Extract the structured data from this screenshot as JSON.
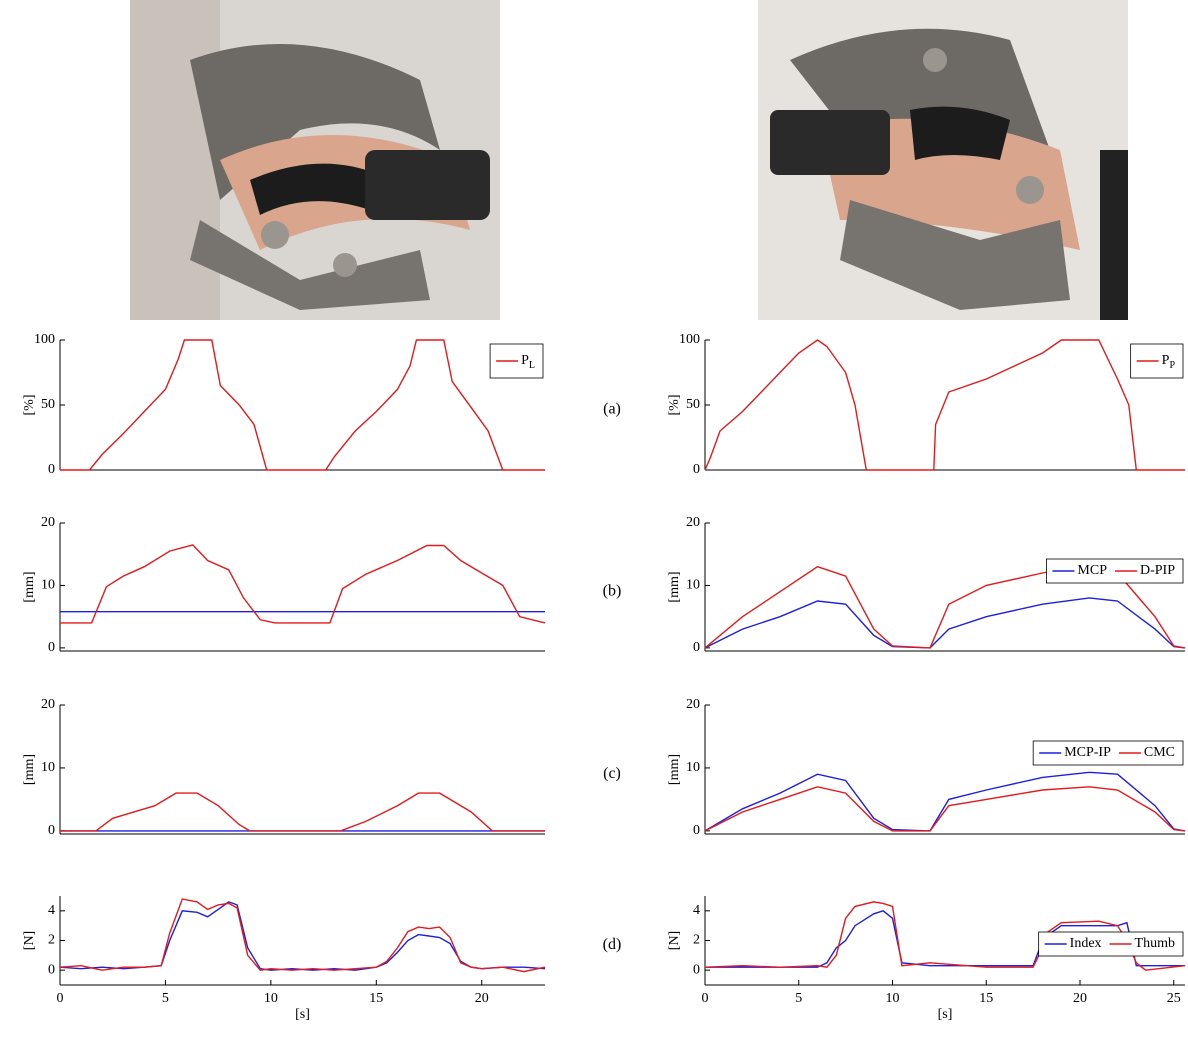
{
  "panel_labels": [
    "(a)",
    "(b)",
    "(c)",
    "(d)"
  ],
  "chart_data": [
    {
      "type": "line",
      "y_label": "[%]",
      "xlim": [
        0,
        23
      ],
      "ylim": [
        0,
        100
      ],
      "yticks": [
        0,
        50,
        100
      ],
      "legend": "upper right",
      "x": [
        0,
        1.4,
        2,
        3,
        4,
        5,
        5.6,
        5.9,
        7.2,
        7.6,
        8.5,
        9.2,
        9.8,
        12.6,
        13,
        14,
        15,
        16,
        16.6,
        16.9,
        18.2,
        18.6,
        19.5,
        20.3,
        21,
        23
      ],
      "series": [
        {
          "name": "PL",
          "color": "#e41a1c",
          "values": [
            0,
            0,
            12,
            28,
            45,
            62,
            85,
            100,
            100,
            65,
            50,
            35,
            0,
            0,
            10,
            30,
            45,
            62,
            80,
            100,
            100,
            68,
            48,
            30,
            0,
            0
          ]
        }
      ]
    },
    {
      "type": "line",
      "y_label": "[%]",
      "xlim": [
        0,
        25.6
      ],
      "ylim": [
        0,
        100
      ],
      "yticks": [
        0,
        50,
        100
      ],
      "legend": "upper right",
      "x": [
        0,
        0.3,
        0.8,
        2,
        3,
        4,
        5,
        6,
        6.5,
        7.5,
        8,
        8.6,
        12.2,
        12.3,
        13,
        15,
        16.5,
        18,
        19,
        21,
        21.5,
        22,
        22.6,
        23,
        25.6
      ],
      "series": [
        {
          "name": "PP",
          "color": "#e41a1c",
          "values": [
            0,
            10,
            30,
            45,
            60,
            75,
            90,
            100,
            95,
            75,
            50,
            0,
            0,
            35,
            60,
            70,
            80,
            90,
            100,
            100,
            85,
            70,
            50,
            0,
            0
          ]
        }
      ]
    },
    {
      "type": "line",
      "y_label": "[mm]",
      "xlim": [
        0,
        23
      ],
      "ylim": [
        -0.5,
        20
      ],
      "yticks": [
        0,
        10,
        20
      ],
      "x": [
        0,
        1.5,
        2.2,
        3,
        4,
        5.2,
        6.3,
        7,
        8,
        8.7,
        9.5,
        10.2,
        12.8,
        13.4,
        14.5,
        16,
        17.4,
        18.2,
        19,
        20,
        21,
        21.8,
        23
      ],
      "series": [
        {
          "color": "#1f1fe0",
          "values": [
            5.8,
            5.8,
            5.8,
            5.8,
            5.8,
            5.8,
            5.8,
            5.8,
            5.8,
            5.8,
            5.8,
            5.8,
            5.8,
            5.8,
            5.8,
            5.8,
            5.8,
            5.8,
            5.8,
            5.8,
            5.8,
            5.8,
            5.8
          ]
        },
        {
          "color": "#e41a1c",
          "values": [
            4,
            4,
            9.8,
            11.5,
            13,
            15.5,
            16.5,
            14,
            12.5,
            8,
            4.5,
            4,
            4,
            9.5,
            11.8,
            14,
            16.4,
            16.4,
            14,
            12,
            10,
            5,
            4
          ]
        }
      ]
    },
    {
      "type": "line",
      "y_label": "[mm]",
      "xlim": [
        0,
        25.6
      ],
      "ylim": [
        -0.5,
        20
      ],
      "yticks": [
        0,
        10,
        20
      ],
      "legend": "upper right",
      "x": [
        0,
        2,
        4,
        6,
        7.5,
        9,
        10,
        12,
        13,
        15,
        18,
        20.5,
        22,
        24,
        25,
        25.6
      ],
      "series": [
        {
          "name": "MCP",
          "color": "#1f1fe0",
          "values": [
            0,
            3,
            5,
            7.5,
            7,
            2,
            0.2,
            0,
            3,
            5,
            7,
            8,
            7.5,
            3,
            0.2,
            0
          ]
        },
        {
          "name": "D-PIP",
          "color": "#e41a1c",
          "values": [
            0,
            5,
            9,
            13,
            11.5,
            3,
            0.3,
            0,
            7,
            10,
            12,
            13.5,
            12,
            5,
            0.3,
            0
          ]
        }
      ]
    },
    {
      "type": "line",
      "y_label": "[mm]",
      "xlim": [
        0,
        23
      ],
      "ylim": [
        -0.5,
        20
      ],
      "yticks": [
        0,
        10,
        20
      ],
      "x": [
        0,
        1.7,
        2.5,
        4.5,
        5.5,
        6.5,
        7.5,
        8.5,
        9,
        13.3,
        14.5,
        16,
        17,
        18,
        19.5,
        20.5,
        23
      ],
      "series": [
        {
          "color": "#1f1fe0",
          "values": [
            0,
            0,
            0,
            0,
            0,
            0,
            0,
            0,
            0,
            0,
            0,
            0,
            0,
            0,
            0,
            0,
            0
          ]
        },
        {
          "color": "#e41a1c",
          "values": [
            0,
            0,
            2,
            4,
            6,
            6,
            4,
            1,
            0,
            0,
            1.5,
            4,
            6,
            6,
            3,
            0,
            0
          ]
        }
      ]
    },
    {
      "type": "line",
      "y_label": "[mm]",
      "xlim": [
        0,
        25.6
      ],
      "ylim": [
        -0.5,
        20
      ],
      "yticks": [
        0,
        10,
        20
      ],
      "legend": "upper right",
      "x": [
        0,
        2,
        4,
        6,
        7.5,
        9,
        10,
        12,
        13,
        15,
        18,
        20.5,
        22,
        24,
        25,
        25.6
      ],
      "series": [
        {
          "name": "MCP-IP",
          "color": "#1f1fe0",
          "values": [
            0,
            3.5,
            6,
            9,
            8,
            2,
            0.2,
            0,
            5,
            6.5,
            8.5,
            9.3,
            9,
            4,
            0.3,
            0
          ]
        },
        {
          "name": "CMC",
          "color": "#e41a1c",
          "values": [
            0,
            3,
            5,
            7,
            6,
            1.5,
            0,
            0,
            4,
            5,
            6.5,
            7,
            6.5,
            3,
            0.2,
            0
          ]
        }
      ]
    },
    {
      "type": "line",
      "y_label": "[N]",
      "x_label": "[s]",
      "xlim": [
        0,
        23
      ],
      "ylim": [
        -1,
        5
      ],
      "yticks": [
        0,
        2,
        4
      ],
      "xticks": [
        0,
        5,
        10,
        15,
        20
      ],
      "x": [
        0,
        1,
        2,
        3,
        4,
        4.8,
        5.2,
        5.8,
        6.5,
        7,
        7.5,
        8,
        8.4,
        8.9,
        9.5,
        10,
        11,
        12,
        13,
        14,
        15,
        15.5,
        16,
        16.5,
        17,
        17.5,
        18,
        18.5,
        19,
        19.5,
        20,
        21,
        22,
        23
      ],
      "series": [
        {
          "color": "#1f1fe0",
          "values": [
            0.2,
            0.1,
            0.2,
            0.1,
            0.2,
            0.3,
            2,
            4,
            3.9,
            3.6,
            4.1,
            4.6,
            4.4,
            1.5,
            0.1,
            0,
            0.1,
            0,
            0.1,
            0,
            0.2,
            0.5,
            1.2,
            2,
            2.4,
            2.3,
            2.2,
            1.8,
            0.6,
            0.2,
            0.1,
            0.2,
            0.2,
            0.1
          ]
        },
        {
          "color": "#e41a1c",
          "values": [
            0.2,
            0.3,
            0,
            0.2,
            0.2,
            0.3,
            2.5,
            4.8,
            4.6,
            4.1,
            4.4,
            4.5,
            4.2,
            1,
            0,
            0.1,
            0,
            0.1,
            0,
            0.1,
            0.2,
            0.6,
            1.5,
            2.6,
            2.9,
            2.8,
            2.9,
            2.2,
            0.5,
            0.2,
            0.1,
            0.2,
            -0.1,
            0.2
          ]
        }
      ]
    },
    {
      "type": "line",
      "y_label": "[N]",
      "x_label": "[s]",
      "xlim": [
        0,
        25.6
      ],
      "ylim": [
        -1,
        5
      ],
      "yticks": [
        0,
        2,
        4
      ],
      "xticks": [
        0,
        5,
        10,
        15,
        20,
        25
      ],
      "legend": "upper right",
      "x": [
        0,
        2,
        4,
        6,
        6.5,
        7,
        7.5,
        8,
        9,
        9.5,
        10,
        10.5,
        12,
        15,
        17.5,
        18,
        18.2,
        19,
        21,
        22,
        22.5,
        23,
        23.5,
        25.6
      ],
      "series": [
        {
          "name": "Index",
          "color": "#1f1fe0",
          "values": [
            0.2,
            0.2,
            0.2,
            0.2,
            0.5,
            1.5,
            2,
            3,
            3.8,
            4,
            3.5,
            0.5,
            0.3,
            0.3,
            0.3,
            2,
            2.3,
            3,
            3,
            3,
            3.2,
            0.3,
            0.3,
            0.3
          ]
        },
        {
          "name": "Thumb",
          "color": "#e41a1c",
          "values": [
            0.2,
            0.3,
            0.2,
            0.3,
            0.2,
            1,
            3.5,
            4.3,
            4.6,
            4.5,
            4.3,
            0.3,
            0.5,
            0.2,
            0.2,
            1.5,
            2.5,
            3.2,
            3.3,
            3,
            2,
            0.5,
            0,
            0.3
          ]
        }
      ]
    }
  ]
}
